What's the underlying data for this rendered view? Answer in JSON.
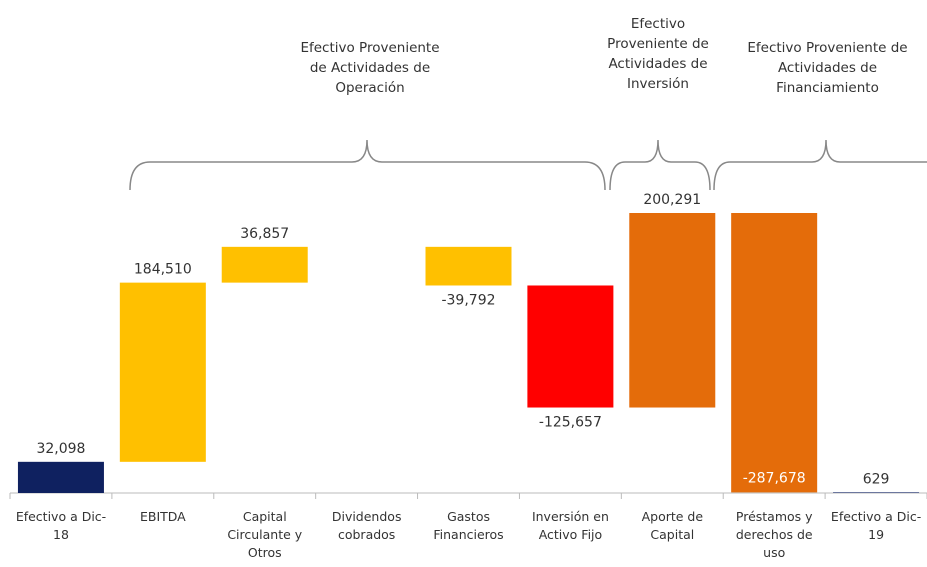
{
  "chart_data": {
    "type": "waterfall",
    "categories": [
      "Efectivo a Dic-18",
      "EBITDA",
      "Capital Circulante y Otros",
      "Dividendos cobrados",
      "Gastos Financieros",
      "Inversión en Activo Fijo",
      "Aporte de Capital",
      "Préstamos y derechos de uso",
      "Efectivo a Dic-19"
    ],
    "values": [
      32098,
      184510,
      36857,
      null,
      -39792,
      -125657,
      200291,
      -287678,
      629
    ],
    "value_labels": [
      "32,098",
      "184,510",
      "36,857",
      null,
      "-39,792",
      "-125,657",
      "200,291",
      "-287,678",
      "629"
    ],
    "colors": [
      "#0f2160",
      "#ffc000",
      "#ffc000",
      null,
      "#ffc000",
      "#ff0000",
      "#e46c0a",
      "#e46c0a",
      "#0f2160"
    ],
    "totals": [
      true,
      false,
      false,
      false,
      false,
      false,
      false,
      false,
      true
    ],
    "annotations": [
      "Efectivo Proveniente de Actividades de Operación",
      "Efectivo Proveniente de Actividades de Inversión",
      "Efectivo Proveniente de Actividades de Financiamiento"
    ]
  }
}
